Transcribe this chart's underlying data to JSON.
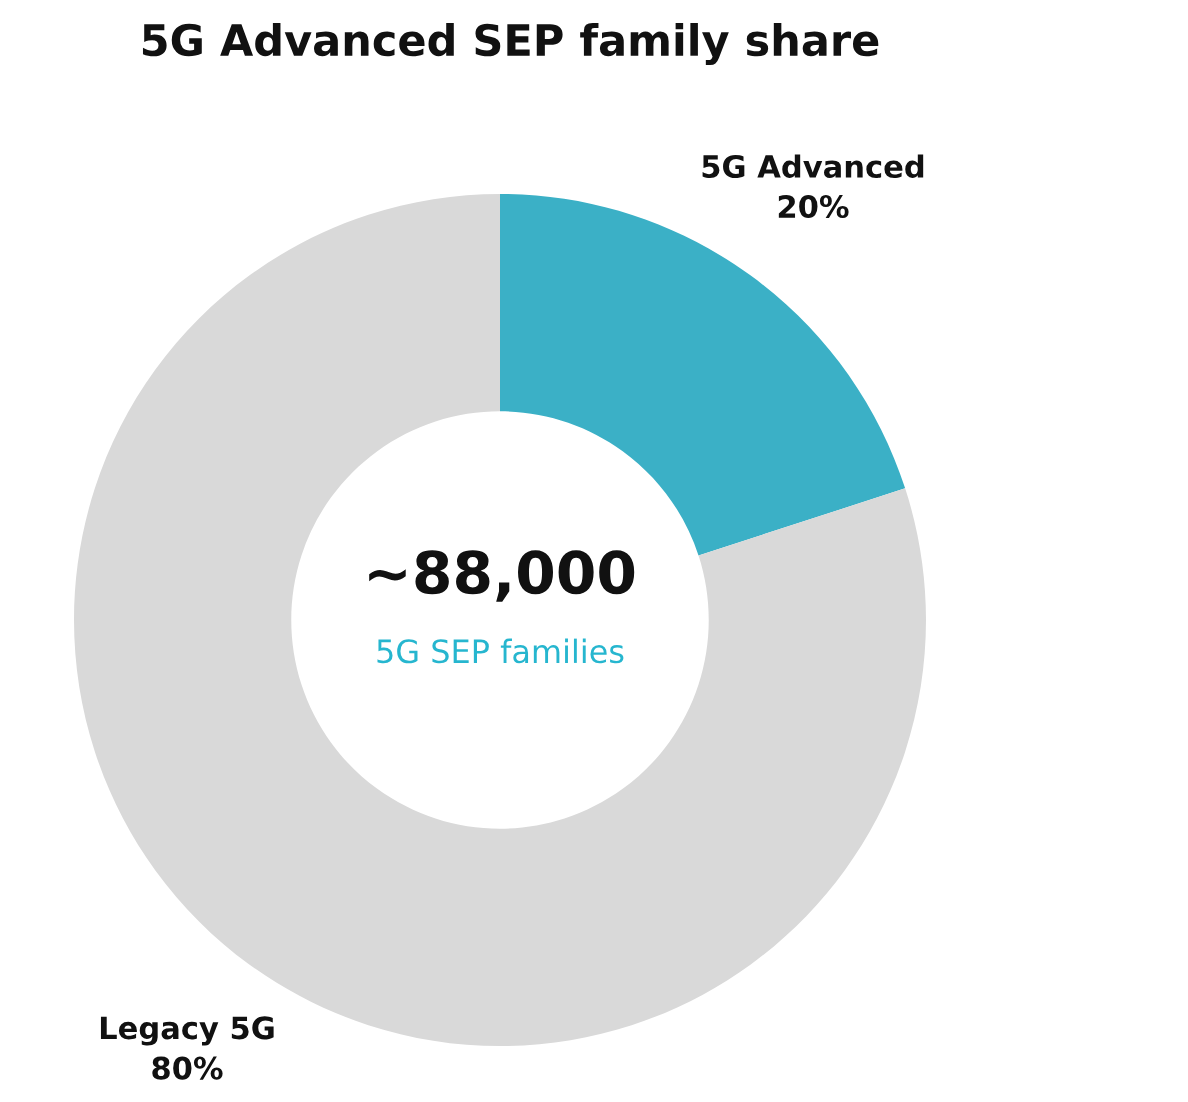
{
  "chart_data": {
    "type": "donut",
    "title": "5G Advanced SEP family share",
    "categories": [
      "5G Advanced",
      "Legacy 5G"
    ],
    "values": [
      20,
      80
    ],
    "colors": [
      "#3bb0c6",
      "#d9d9d9"
    ],
    "value_labels": [
      "20%",
      "80%"
    ],
    "annotations": [
      "~88,000",
      "5G SEP families"
    ]
  }
}
